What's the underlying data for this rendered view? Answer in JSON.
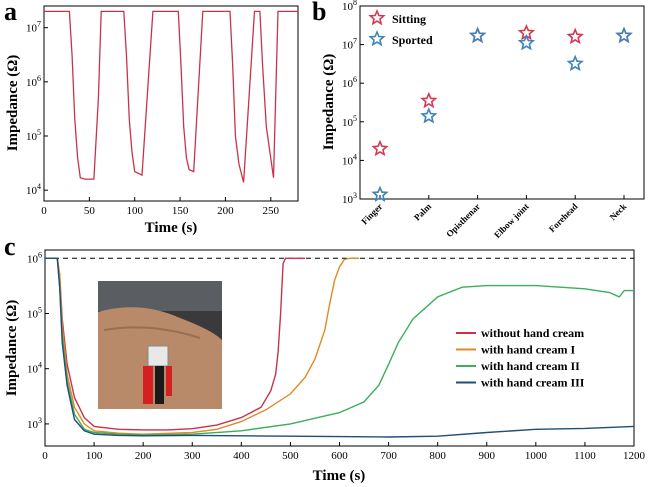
{
  "colors": {
    "red": "#c8334a",
    "orange": "#e08a24",
    "green": "#3cae5c",
    "navy": "#1f4e7a",
    "star_red": "#d23a52",
    "star_blue": "#3e84b8"
  },
  "chart_data": [
    {
      "panel": "a",
      "type": "line",
      "xlabel": "Time (s)",
      "ylabel": "Impedance (Ω)",
      "xlim": [
        0,
        280
      ],
      "ylim_log10": [
        3.8,
        7.4
      ],
      "y_scale": "log",
      "xticks": [
        0,
        50,
        100,
        150,
        200,
        250
      ],
      "ytick_labels": [
        "10^4",
        "10^5",
        "10^6",
        "10^7"
      ],
      "series": [
        {
          "color": "red",
          "x": [
            0,
            28,
            31,
            34,
            37,
            40,
            45,
            55,
            60,
            63,
            66,
            72,
            88,
            91,
            94,
            97,
            100,
            108,
            120,
            123,
            126,
            130,
            135,
            148,
            151,
            154,
            157,
            160,
            165,
            175,
            178,
            181,
            185,
            192,
            205,
            208,
            211,
            215,
            220,
            232,
            235,
            238,
            241,
            245,
            253,
            258,
            261,
            264,
            268,
            280
          ],
          "y": [
            20000000,
            20000000,
            3000000,
            200000,
            40000,
            17000,
            16000,
            16000,
            500000,
            20000000,
            20000000,
            20000000,
            20000000,
            3000000,
            200000,
            50000,
            22000,
            19000,
            20000000,
            20000000,
            20000000,
            20000000,
            20000000,
            20000000,
            2000000,
            150000,
            40000,
            24000,
            22000,
            20000000,
            20000000,
            20000000,
            20000000,
            20000000,
            20000000,
            2000000,
            100000,
            30000,
            14000,
            20000000,
            20000000,
            20000000,
            2000000,
            150000,
            17000,
            20000000,
            20000000,
            20000000,
            20000000,
            20000000
          ]
        }
      ]
    },
    {
      "panel": "b",
      "type": "scatter",
      "ylabel": "Impedance (Ω)",
      "y_scale": "log",
      "ylim_log10": [
        3.0,
        8.0
      ],
      "ytick_labels": [
        "10^3",
        "10^4",
        "10^5",
        "10^6",
        "10^7",
        "10^8"
      ],
      "categories": [
        "Finger",
        "Palm",
        "Opisthenar",
        "Elbow joint",
        "Forehead",
        "Neck"
      ],
      "legend_position": "top-left",
      "series": [
        {
          "name": "Sitting",
          "color": "star_red",
          "values": [
            20000,
            350000,
            17000000,
            20000000,
            16000000,
            17000000
          ]
        },
        {
          "name": "Sported",
          "color": "star_blue",
          "values": [
            1300,
            140000,
            17000000,
            11000000,
            3200000,
            17000000
          ]
        }
      ]
    },
    {
      "panel": "c",
      "type": "line",
      "xlabel": "Time (s)",
      "ylabel": "Impedance (Ω)",
      "xlim": [
        0,
        1200
      ],
      "ylim_log10": [
        2.6,
        6.15
      ],
      "y_scale": "log",
      "xticks": [
        0,
        100,
        200,
        300,
        400,
        500,
        600,
        700,
        800,
        900,
        1000,
        1100,
        1200
      ],
      "ytick_labels": [
        "10^3",
        "10^4",
        "10^5",
        "10^6"
      ],
      "reference_line": 1000000,
      "legend_position": "right",
      "series": [
        {
          "name": "without hand cream",
          "color": "red",
          "x": [
            0,
            25,
            30,
            35,
            45,
            60,
            80,
            100,
            150,
            200,
            250,
            300,
            350,
            400,
            440,
            460,
            470,
            475,
            480,
            485,
            490,
            500,
            530
          ],
          "y": [
            1000000,
            1000000,
            500000,
            80000,
            12000,
            3000,
            1300,
            900,
            800,
            780,
            780,
            820,
            950,
            1300,
            2000,
            4000,
            8000,
            20000,
            100000,
            800000,
            1000000,
            1000000,
            1000000
          ]
        },
        {
          "name": "with hand cream I",
          "color": "orange",
          "x": [
            0,
            25,
            30,
            35,
            45,
            60,
            80,
            100,
            150,
            200,
            300,
            350,
            400,
            450,
            500,
            530,
            550,
            570,
            580,
            590,
            600,
            610,
            620,
            640
          ],
          "y": [
            1000000,
            1000000,
            500000,
            60000,
            8000,
            2000,
            1000,
            750,
            680,
            650,
            700,
            800,
            1100,
            1800,
            3500,
            7000,
            15000,
            50000,
            150000,
            400000,
            700000,
            950000,
            1000000,
            1000000
          ]
        },
        {
          "name": "with hand cream II",
          "color": "green",
          "x": [
            0,
            25,
            30,
            35,
            45,
            60,
            80,
            100,
            150,
            200,
            300,
            400,
            500,
            600,
            650,
            680,
            700,
            720,
            750,
            800,
            850,
            900,
            1000,
            1100,
            1150,
            1170,
            1180,
            1200
          ],
          "y": [
            1000000,
            1000000,
            300000,
            40000,
            6000,
            1500,
            800,
            700,
            650,
            630,
            650,
            750,
            1000,
            1600,
            2500,
            5000,
            12000,
            30000,
            80000,
            200000,
            300000,
            320000,
            320000,
            280000,
            240000,
            200000,
            260000,
            260000
          ]
        },
        {
          "name": "with hand cream III",
          "color": "navy",
          "x": [
            0,
            25,
            30,
            35,
            45,
            60,
            80,
            100,
            150,
            200,
            300,
            400,
            500,
            600,
            700,
            800,
            900,
            1000,
            1100,
            1200
          ],
          "y": [
            1000000,
            1000000,
            300000,
            30000,
            5000,
            1200,
            750,
            650,
            620,
            610,
            620,
            610,
            600,
            590,
            580,
            600,
            700,
            800,
            830,
            900
          ]
        }
      ]
    }
  ],
  "panel_labels": [
    "a",
    "b",
    "c"
  ]
}
